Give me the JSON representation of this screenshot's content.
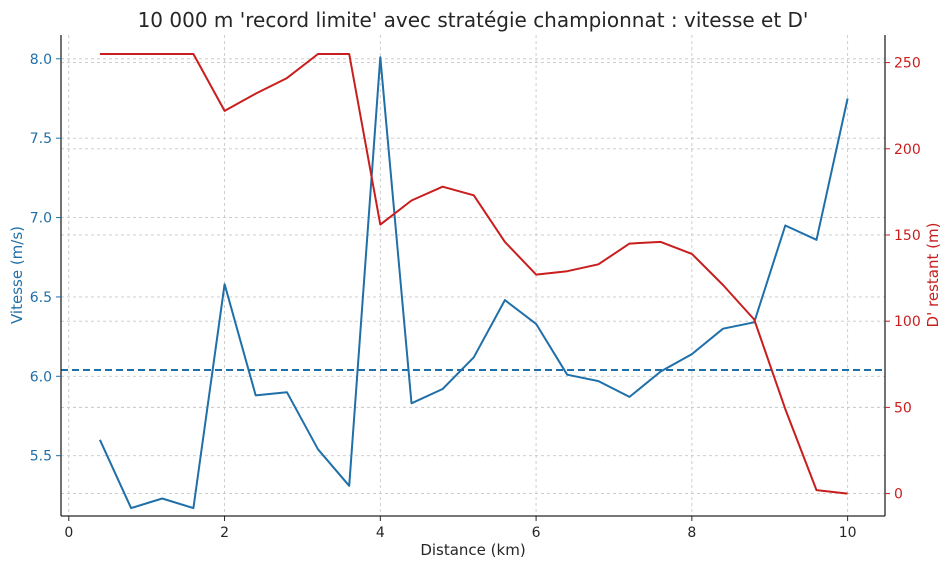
{
  "chart_data": {
    "type": "line",
    "title": "10 000 m 'record limite' avec stratégie championnat : vitesse et D'",
    "xlabel": "Distance (km)",
    "ylabel_left": "Vitesse (m/s)",
    "ylabel_right": "D' restant (m)",
    "xlim": [
      -0.1,
      10.48
    ],
    "ylim_left": [
      5.12,
      8.15
    ],
    "ylim_right": [
      -13,
      266
    ],
    "x_ticks": [
      0,
      2,
      4,
      6,
      8,
      10
    ],
    "y_left_ticks": [
      5.5,
      6.0,
      6.5,
      7.0,
      7.5,
      8.0
    ],
    "y_right_ticks": [
      0,
      50,
      100,
      150,
      200,
      250
    ],
    "grid": true,
    "colors": {
      "left": "#1f6fa8",
      "right": "#c81e1e"
    },
    "reference_line": {
      "axis": "left",
      "value": 6.04,
      "style": "dashed"
    },
    "x": [
      0.4,
      0.8,
      1.2,
      1.6,
      2.0,
      2.4,
      2.8,
      3.2,
      3.6,
      4.0,
      4.4,
      4.8,
      5.2,
      5.6,
      6.0,
      6.4,
      6.8,
      7.2,
      7.6,
      8.0,
      8.4,
      8.8,
      9.2,
      9.6,
      10.0
    ],
    "series": [
      {
        "axis": "left",
        "values": [
          5.6,
          5.17,
          5.23,
          5.17,
          6.58,
          5.88,
          5.9,
          5.54,
          5.31,
          8.01,
          5.83,
          5.92,
          6.12,
          6.48,
          6.33,
          6.01,
          5.97,
          5.87,
          6.03,
          6.14,
          6.3,
          6.34,
          6.95,
          6.86,
          7.75
        ]
      },
      {
        "axis": "right",
        "values": [
          255,
          255,
          255,
          255,
          222,
          232,
          241,
          255,
          255,
          156,
          170,
          178,
          173,
          146,
          127,
          129,
          133,
          145,
          146,
          139,
          121,
          101,
          49,
          2,
          0
        ]
      }
    ]
  }
}
